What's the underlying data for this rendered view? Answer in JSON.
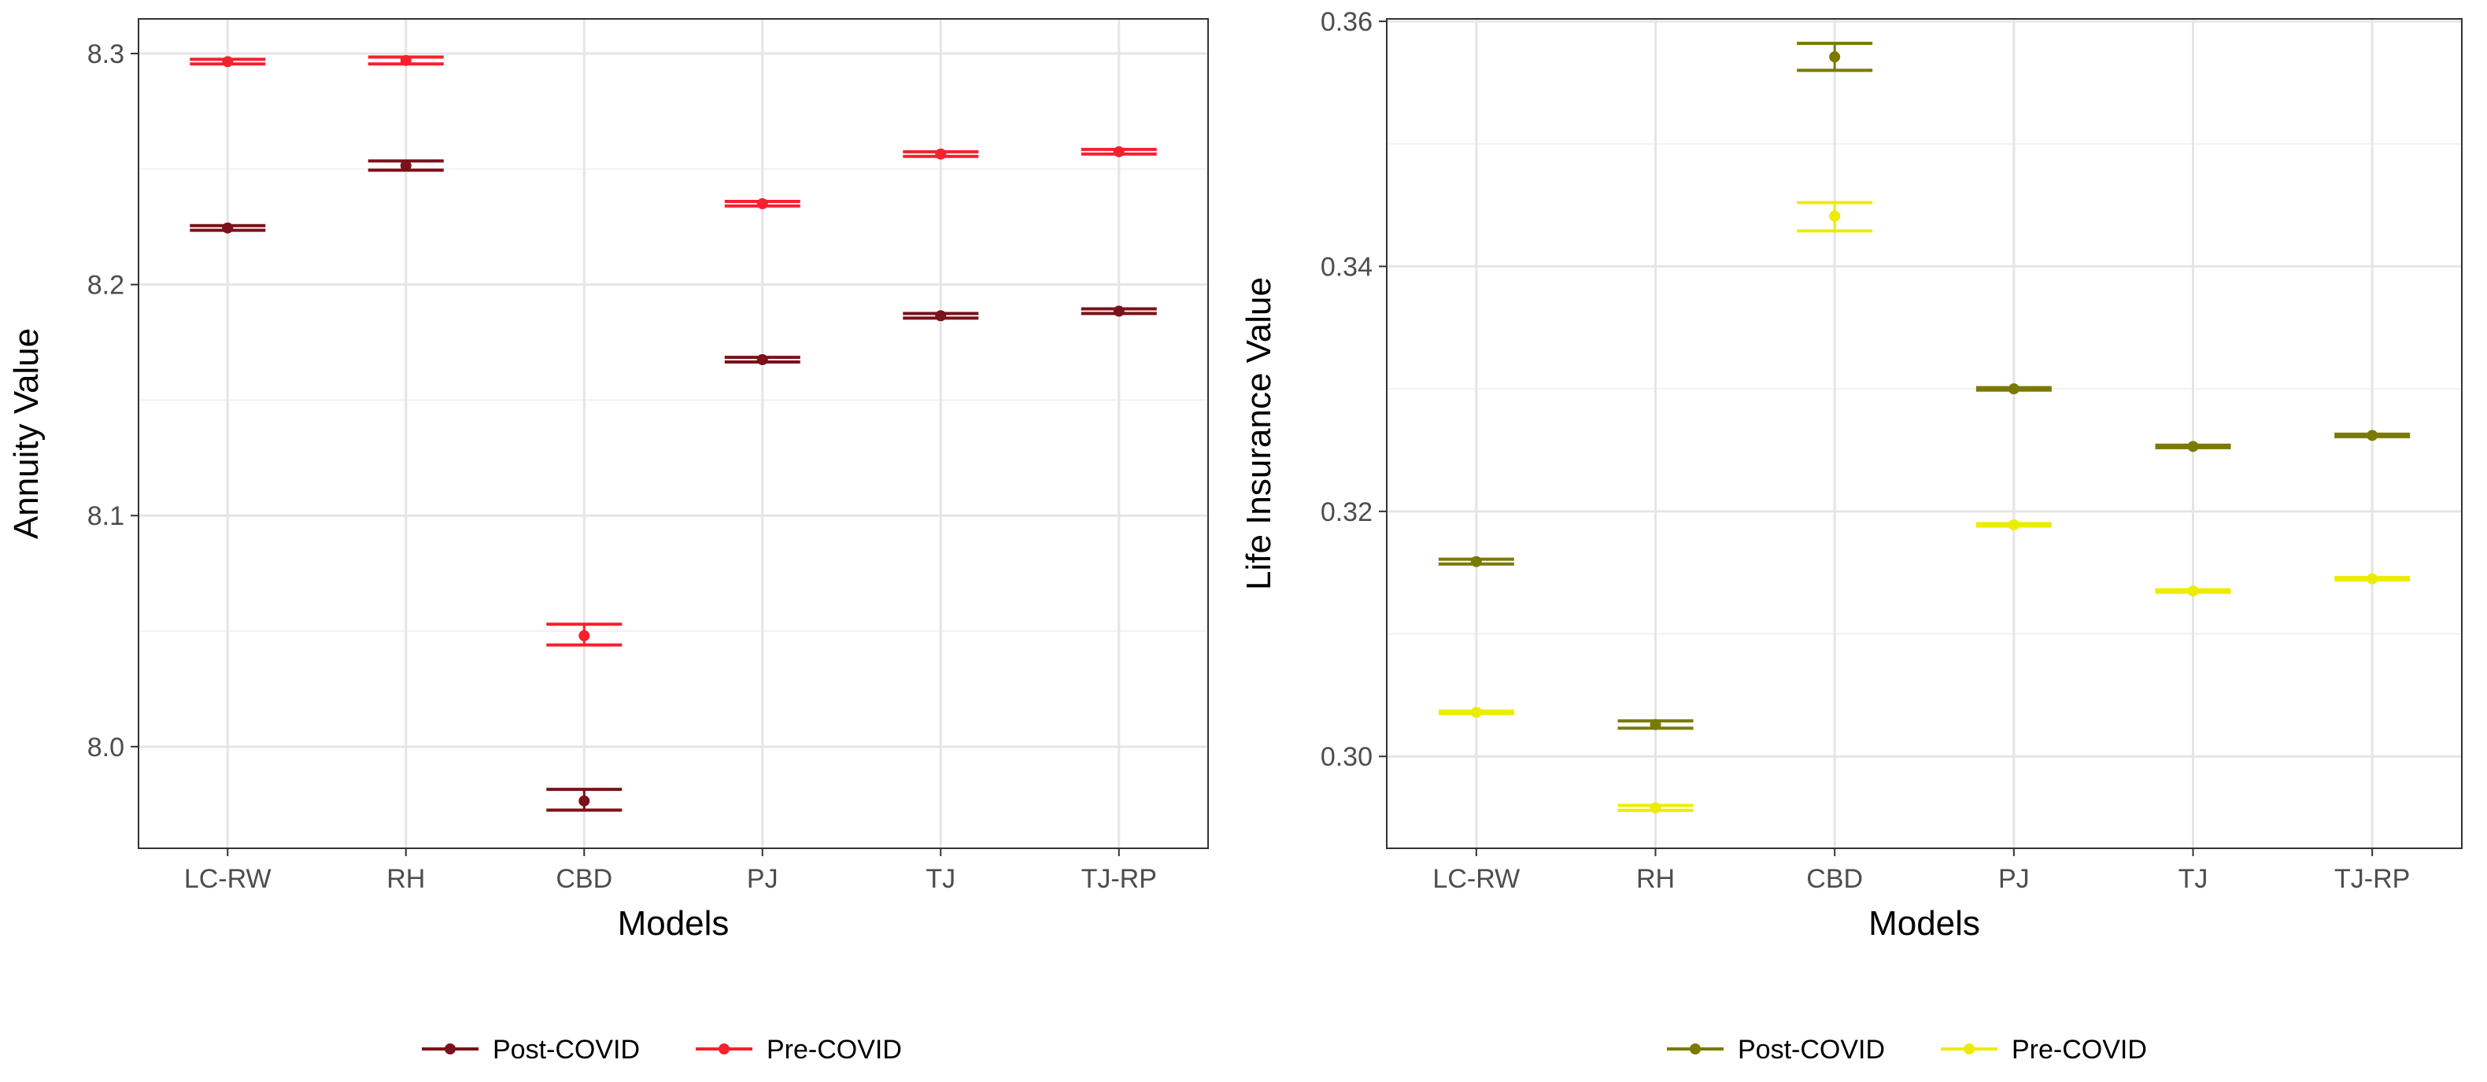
{
  "chart_data": [
    {
      "type": "errorbar",
      "id": "annuity",
      "xlabel": "Models",
      "ylabel": "Annuity Value",
      "categories": [
        "LC-RW",
        "RH",
        "CBD",
        "PJ",
        "TJ",
        "TJ-RP"
      ],
      "ylim": [
        7.956,
        8.315
      ],
      "yticks": [
        8.0,
        8.1,
        8.2,
        8.3
      ],
      "ytick_labels": [
        "8.0",
        "8.1",
        "8.2",
        "8.3"
      ],
      "grid": true,
      "legend_position": "bottom",
      "series": [
        {
          "name": "Post-COVID",
          "color": "#7b111a",
          "values": [
            8.2245,
            8.2515,
            7.9765,
            8.1675,
            8.1865,
            8.1885
          ],
          "lower": [
            8.2235,
            8.2495,
            7.9725,
            8.1665,
            8.1855,
            8.1875
          ],
          "upper": [
            8.2255,
            8.2535,
            7.9815,
            8.1685,
            8.1875,
            8.1895
          ]
        },
        {
          "name": "Pre-COVID",
          "color": "#f8202f",
          "values": [
            8.2965,
            8.297,
            8.048,
            8.235,
            8.2565,
            8.2575
          ],
          "lower": [
            8.2955,
            8.2955,
            8.044,
            8.234,
            8.2555,
            8.2565
          ],
          "upper": [
            8.2975,
            8.2985,
            8.053,
            8.236,
            8.2575,
            8.2585
          ]
        }
      ]
    },
    {
      "type": "errorbar",
      "id": "life_insurance",
      "xlabel": "Models",
      "ylabel": "Life Insurance Value",
      "categories": [
        "LC-RW",
        "RH",
        "CBD",
        "PJ",
        "TJ",
        "TJ-RP"
      ],
      "ylim": [
        0.2925,
        0.3602
      ],
      "yticks": [
        0.3,
        0.32,
        0.34,
        0.36
      ],
      "ytick_labels": [
        "0.30",
        "0.32",
        "0.34",
        "0.36"
      ],
      "grid": true,
      "legend_position": "bottom",
      "series": [
        {
          "name": "Post-COVID",
          "color": "#7a7a00",
          "values": [
            0.3159,
            0.3026,
            0.3571,
            0.33,
            0.3253,
            0.3262
          ],
          "lower": [
            0.3157,
            0.3023,
            0.356,
            0.3299,
            0.3252,
            0.3261
          ],
          "upper": [
            0.3161,
            0.3029,
            0.3582,
            0.3301,
            0.3254,
            0.3263
          ]
        },
        {
          "name": "Pre-COVID",
          "color": "#ecec00",
          "values": [
            0.3036,
            0.2958,
            0.3441,
            0.3189,
            0.3135,
            0.3145
          ],
          "lower": [
            0.3035,
            0.2956,
            0.3429,
            0.3188,
            0.3134,
            0.3144
          ],
          "upper": [
            0.3037,
            0.296,
            0.3452,
            0.319,
            0.3136,
            0.3146
          ]
        }
      ]
    }
  ]
}
